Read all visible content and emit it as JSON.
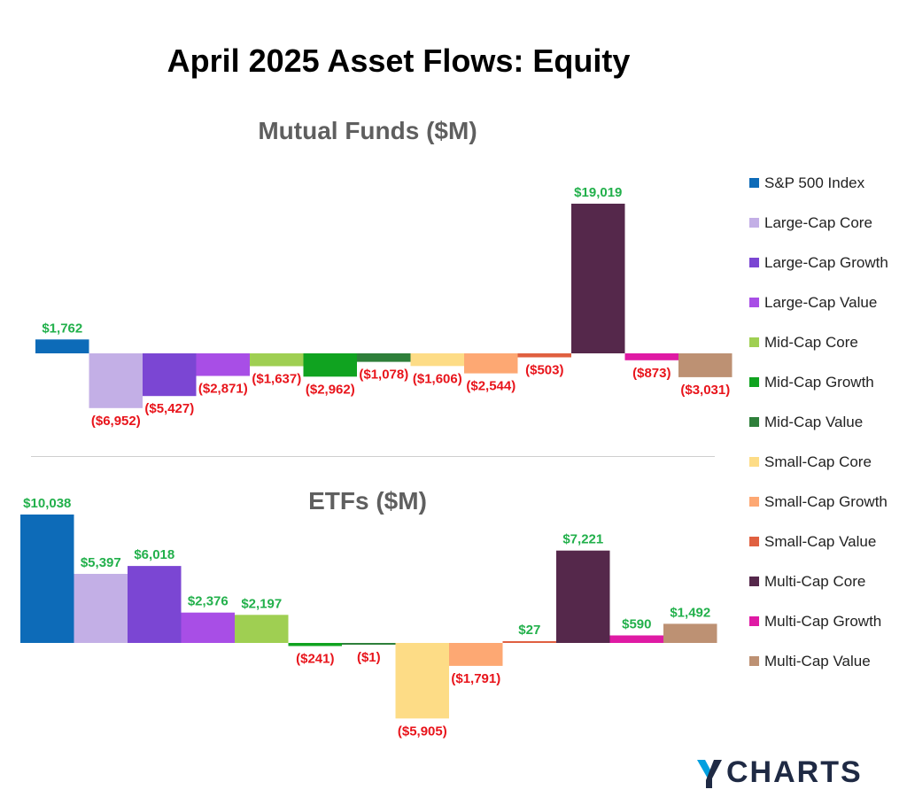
{
  "title": "April 2025 Asset Flows: Equity",
  "logo": {
    "text": "CHARTS",
    "icon": "ycharts-y-logo",
    "colors": [
      "#1f2a44",
      "#00a0e0"
    ]
  },
  "legend": {
    "items": [
      {
        "label": "S&P 500 Index",
        "color": "#0d6bb8"
      },
      {
        "label": "Large-Cap Core",
        "color": "#c3afe6"
      },
      {
        "label": "Large-Cap Growth",
        "color": "#7b46d3"
      },
      {
        "label": "Large-Cap Value",
        "color": "#a84ee6"
      },
      {
        "label": "Mid-Cap Core",
        "color": "#9fcf52"
      },
      {
        "label": "Mid-Cap Growth",
        "color": "#10a320"
      },
      {
        "label": "Mid-Cap Value",
        "color": "#2e7f3a"
      },
      {
        "label": "Small-Cap Core",
        "color": "#fddc86"
      },
      {
        "label": "Small-Cap Growth",
        "color": "#fda873"
      },
      {
        "label": "Small-Cap Value",
        "color": "#e06040"
      },
      {
        "label": "Multi-Cap Core",
        "color": "#55284b"
      },
      {
        "label": "Multi-Cap Growth",
        "color": "#df1aa4"
      },
      {
        "label": "Multi-Cap Value",
        "color": "#bd9173"
      }
    ]
  },
  "chart_data": [
    {
      "type": "bar",
      "title": "Mutual Funds ($M)",
      "categories": [
        "S&P 500 Index",
        "Large-Cap Core",
        "Large-Cap Growth",
        "Large-Cap Value",
        "Mid-Cap Core",
        "Mid-Cap Growth",
        "Mid-Cap Value",
        "Small-Cap Core",
        "Small-Cap Growth",
        "Small-Cap Value",
        "Multi-Cap Core",
        "Multi-Cap Growth",
        "Multi-Cap Value"
      ],
      "values": [
        1762,
        -6952,
        -5427,
        -2871,
        -1637,
        -2962,
        -1078,
        -1606,
        -2544,
        -503,
        19019,
        -873,
        -3031
      ],
      "labels": [
        "$1,762",
        "($6,952)",
        "($5,427)",
        "($2,871)",
        "($1,637)",
        "($2,962)",
        "($1,078)",
        "($1,606)",
        "($2,544)",
        "($503)",
        "$19,019",
        "($873)",
        "($3,031)"
      ],
      "positive_label_color": "#22b04b",
      "negative_label_color": "#e8141b"
    },
    {
      "type": "bar",
      "title": "ETFs ($M)",
      "categories": [
        "S&P 500 Index",
        "Large-Cap Core",
        "Large-Cap Growth",
        "Large-Cap Value",
        "Mid-Cap Core",
        "Mid-Cap Growth",
        "Mid-Cap Value",
        "Small-Cap Core",
        "Small-Cap Growth",
        "Small-Cap Value",
        "Multi-Cap Core",
        "Multi-Cap Growth",
        "Multi-Cap Value"
      ],
      "values": [
        10038,
        5397,
        6018,
        2376,
        2197,
        -241,
        -1,
        -5905,
        -1791,
        27,
        7221,
        590,
        1492
      ],
      "labels": [
        "$10,038",
        "$5,397",
        "$6,018",
        "$2,376",
        "$2,197",
        "($241)",
        "($1)",
        "($5,905)",
        "($1,791)",
        "$27",
        "$7,221",
        "$590",
        "$1,492"
      ],
      "positive_label_color": "#22b04b",
      "negative_label_color": "#e8141b"
    }
  ]
}
